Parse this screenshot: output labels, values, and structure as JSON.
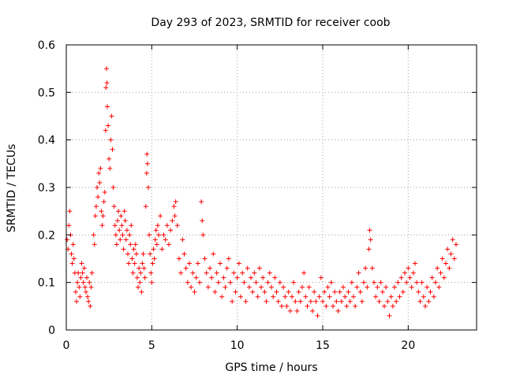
{
  "chart_data": {
    "type": "scatter",
    "title": "Day 293 of 2023, SRMTID for receiver coob",
    "xlabel": "GPS time / hours",
    "ylabel": "SRMTID / TECUs",
    "xlim": [
      0,
      24
    ],
    "ylim": [
      0,
      0.6
    ],
    "xticks": [
      0,
      5,
      10,
      15,
      20
    ],
    "xtick_labels": [
      "0",
      "5",
      "10",
      "15",
      "20"
    ],
    "yticks": [
      0,
      0.1,
      0.2,
      0.3,
      0.4,
      0.5,
      0.6
    ],
    "ytick_labels": [
      "0",
      "0.1",
      "0.2",
      "0.3",
      "0.4",
      "0.5",
      "0.6"
    ],
    "grid": true,
    "marker": "+",
    "color": "#ff0000",
    "series": [
      {
        "name": "SRMTID",
        "points": [
          [
            0.05,
            0.19
          ],
          [
            0.1,
            0.17
          ],
          [
            0.15,
            0.22
          ],
          [
            0.2,
            0.25
          ],
          [
            0.25,
            0.2
          ],
          [
            0.3,
            0.16
          ],
          [
            0.35,
            0.14
          ],
          [
            0.4,
            0.18
          ],
          [
            0.45,
            0.15
          ],
          [
            0.5,
            0.12
          ],
          [
            0.55,
            0.08
          ],
          [
            0.6,
            0.06
          ],
          [
            0.65,
            0.1
          ],
          [
            0.7,
            0.12
          ],
          [
            0.75,
            0.09
          ],
          [
            0.8,
            0.07
          ],
          [
            0.85,
            0.11
          ],
          [
            0.9,
            0.14
          ],
          [
            0.95,
            0.12
          ],
          [
            1.0,
            0.1
          ],
          [
            1.05,
            0.13
          ],
          [
            1.1,
            0.09
          ],
          [
            1.15,
            0.08
          ],
          [
            1.2,
            0.11
          ],
          [
            1.25,
            0.07
          ],
          [
            1.3,
            0.06
          ],
          [
            1.35,
            0.1
          ],
          [
            1.4,
            0.05
          ],
          [
            1.45,
            0.09
          ],
          [
            1.5,
            0.12
          ],
          [
            1.6,
            0.2
          ],
          [
            1.65,
            0.18
          ],
          [
            1.7,
            0.24
          ],
          [
            1.75,
            0.26
          ],
          [
            1.8,
            0.3
          ],
          [
            1.85,
            0.28
          ],
          [
            1.9,
            0.33
          ],
          [
            1.95,
            0.31
          ],
          [
            2.0,
            0.34
          ],
          [
            2.05,
            0.25
          ],
          [
            2.1,
            0.22
          ],
          [
            2.15,
            0.24
          ],
          [
            2.2,
            0.27
          ],
          [
            2.25,
            0.29
          ],
          [
            2.3,
            0.42
          ],
          [
            2.32,
            0.51
          ],
          [
            2.35,
            0.55
          ],
          [
            2.38,
            0.52
          ],
          [
            2.4,
            0.47
          ],
          [
            2.45,
            0.43
          ],
          [
            2.5,
            0.36
          ],
          [
            2.55,
            0.34
          ],
          [
            2.6,
            0.4
          ],
          [
            2.65,
            0.45
          ],
          [
            2.7,
            0.38
          ],
          [
            2.75,
            0.3
          ],
          [
            2.8,
            0.26
          ],
          [
            2.85,
            0.22
          ],
          [
            2.9,
            0.2
          ],
          [
            2.95,
            0.18
          ],
          [
            3.0,
            0.23
          ],
          [
            3.05,
            0.25
          ],
          [
            3.1,
            0.21
          ],
          [
            3.15,
            0.19
          ],
          [
            3.2,
            0.24
          ],
          [
            3.25,
            0.22
          ],
          [
            3.3,
            0.2
          ],
          [
            3.35,
            0.17
          ],
          [
            3.4,
            0.25
          ],
          [
            3.45,
            0.23
          ],
          [
            3.5,
            0.19
          ],
          [
            3.55,
            0.21
          ],
          [
            3.6,
            0.16
          ],
          [
            3.65,
            0.14
          ],
          [
            3.7,
            0.2
          ],
          [
            3.75,
            0.18
          ],
          [
            3.8,
            0.22
          ],
          [
            3.85,
            0.15
          ],
          [
            3.9,
            0.12
          ],
          [
            3.95,
            0.17
          ],
          [
            4.0,
            0.14
          ],
          [
            4.05,
            0.18
          ],
          [
            4.1,
            0.16
          ],
          [
            4.15,
            0.11
          ],
          [
            4.2,
            0.09
          ],
          [
            4.25,
            0.13
          ],
          [
            4.3,
            0.1
          ],
          [
            4.35,
            0.12
          ],
          [
            4.4,
            0.08
          ],
          [
            4.45,
            0.14
          ],
          [
            4.5,
            0.16
          ],
          [
            4.55,
            0.13
          ],
          [
            4.6,
            0.11
          ],
          [
            4.65,
            0.26
          ],
          [
            4.7,
            0.33
          ],
          [
            4.72,
            0.37
          ],
          [
            4.75,
            0.35
          ],
          [
            4.8,
            0.3
          ],
          [
            4.85,
            0.2
          ],
          [
            4.9,
            0.16
          ],
          [
            4.95,
            0.12
          ],
          [
            5.0,
            0.1
          ],
          [
            5.05,
            0.14
          ],
          [
            5.1,
            0.17
          ],
          [
            5.15,
            0.15
          ],
          [
            5.2,
            0.19
          ],
          [
            5.25,
            0.21
          ],
          [
            5.3,
            0.18
          ],
          [
            5.35,
            0.22
          ],
          [
            5.4,
            0.2
          ],
          [
            5.5,
            0.24
          ],
          [
            5.6,
            0.17
          ],
          [
            5.7,
            0.2
          ],
          [
            5.8,
            0.19
          ],
          [
            5.9,
            0.22
          ],
          [
            6.0,
            0.18
          ],
          [
            6.1,
            0.21
          ],
          [
            6.2,
            0.23
          ],
          [
            6.3,
            0.26
          ],
          [
            6.35,
            0.24
          ],
          [
            6.4,
            0.27
          ],
          [
            6.5,
            0.22
          ],
          [
            6.6,
            0.15
          ],
          [
            6.7,
            0.12
          ],
          [
            6.8,
            0.19
          ],
          [
            6.9,
            0.16
          ],
          [
            7.0,
            0.13
          ],
          [
            7.1,
            0.1
          ],
          [
            7.2,
            0.14
          ],
          [
            7.3,
            0.09
          ],
          [
            7.4,
            0.12
          ],
          [
            7.5,
            0.08
          ],
          [
            7.6,
            0.11
          ],
          [
            7.7,
            0.14
          ],
          [
            7.8,
            0.1
          ],
          [
            7.9,
            0.27
          ],
          [
            7.95,
            0.23
          ],
          [
            8.0,
            0.2
          ],
          [
            8.1,
            0.15
          ],
          [
            8.2,
            0.12
          ],
          [
            8.3,
            0.09
          ],
          [
            8.4,
            0.13
          ],
          [
            8.5,
            0.11
          ],
          [
            8.6,
            0.16
          ],
          [
            8.7,
            0.08
          ],
          [
            8.8,
            0.12
          ],
          [
            8.9,
            0.1
          ],
          [
            9.0,
            0.14
          ],
          [
            9.1,
            0.07
          ],
          [
            9.2,
            0.11
          ],
          [
            9.3,
            0.09
          ],
          [
            9.4,
            0.13
          ],
          [
            9.5,
            0.15
          ],
          [
            9.6,
            0.1
          ],
          [
            9.7,
            0.06
          ],
          [
            9.8,
            0.12
          ],
          [
            9.9,
            0.08
          ],
          [
            10.0,
            0.11
          ],
          [
            10.1,
            0.14
          ],
          [
            10.2,
            0.07
          ],
          [
            10.3,
            0.12
          ],
          [
            10.4,
            0.1
          ],
          [
            10.5,
            0.06
          ],
          [
            10.6,
            0.13
          ],
          [
            10.7,
            0.09
          ],
          [
            10.8,
            0.11
          ],
          [
            10.9,
            0.08
          ],
          [
            11.0,
            0.12
          ],
          [
            11.1,
            0.1
          ],
          [
            11.2,
            0.07
          ],
          [
            11.3,
            0.13
          ],
          [
            11.4,
            0.09
          ],
          [
            11.5,
            0.11
          ],
          [
            11.6,
            0.08
          ],
          [
            11.7,
            0.06
          ],
          [
            11.8,
            0.1
          ],
          [
            11.9,
            0.12
          ],
          [
            12.0,
            0.09
          ],
          [
            12.1,
            0.07
          ],
          [
            12.2,
            0.11
          ],
          [
            12.3,
            0.08
          ],
          [
            12.4,
            0.06
          ],
          [
            12.5,
            0.1
          ],
          [
            12.6,
            0.05
          ],
          [
            12.7,
            0.09
          ],
          [
            12.8,
            0.07
          ],
          [
            12.9,
            0.05
          ],
          [
            13.0,
            0.08
          ],
          [
            13.1,
            0.04
          ],
          [
            13.2,
            0.07
          ],
          [
            13.3,
            0.1
          ],
          [
            13.4,
            0.06
          ],
          [
            13.5,
            0.04
          ],
          [
            13.6,
            0.08
          ],
          [
            13.7,
            0.06
          ],
          [
            13.8,
            0.09
          ],
          [
            13.9,
            0.12
          ],
          [
            14.0,
            0.07
          ],
          [
            14.1,
            0.05
          ],
          [
            14.2,
            0.09
          ],
          [
            14.3,
            0.06
          ],
          [
            14.4,
            0.04
          ],
          [
            14.5,
            0.08
          ],
          [
            14.6,
            0.06
          ],
          [
            14.7,
            0.03
          ],
          [
            14.8,
            0.07
          ],
          [
            14.9,
            0.11
          ],
          [
            15.0,
            0.06
          ],
          [
            15.1,
            0.08
          ],
          [
            15.2,
            0.05
          ],
          [
            15.3,
            0.09
          ],
          [
            15.4,
            0.07
          ],
          [
            15.5,
            0.1
          ],
          [
            15.6,
            0.05
          ],
          [
            15.7,
            0.08
          ],
          [
            15.8,
            0.06
          ],
          [
            15.9,
            0.04
          ],
          [
            16.0,
            0.08
          ],
          [
            16.1,
            0.06
          ],
          [
            16.2,
            0.09
          ],
          [
            16.3,
            0.07
          ],
          [
            16.4,
            0.05
          ],
          [
            16.5,
            0.08
          ],
          [
            16.6,
            0.06
          ],
          [
            16.7,
            0.1
          ],
          [
            16.8,
            0.07
          ],
          [
            16.9,
            0.05
          ],
          [
            17.0,
            0.09
          ],
          [
            17.1,
            0.12
          ],
          [
            17.2,
            0.08
          ],
          [
            17.3,
            0.06
          ],
          [
            17.4,
            0.1
          ],
          [
            17.5,
            0.13
          ],
          [
            17.6,
            0.09
          ],
          [
            17.7,
            0.17
          ],
          [
            17.75,
            0.21
          ],
          [
            17.8,
            0.19
          ],
          [
            17.9,
            0.13
          ],
          [
            18.0,
            0.1
          ],
          [
            18.1,
            0.07
          ],
          [
            18.2,
            0.09
          ],
          [
            18.3,
            0.06
          ],
          [
            18.4,
            0.1
          ],
          [
            18.5,
            0.08
          ],
          [
            18.6,
            0.05
          ],
          [
            18.7,
            0.09
          ],
          [
            18.8,
            0.06
          ],
          [
            18.9,
            0.03
          ],
          [
            19.0,
            0.07
          ],
          [
            19.1,
            0.05
          ],
          [
            19.2,
            0.09
          ],
          [
            19.3,
            0.06
          ],
          [
            19.4,
            0.1
          ],
          [
            19.5,
            0.07
          ],
          [
            19.6,
            0.11
          ],
          [
            19.7,
            0.08
          ],
          [
            19.8,
            0.12
          ],
          [
            19.9,
            0.1
          ],
          [
            20.0,
            0.13
          ],
          [
            20.1,
            0.11
          ],
          [
            20.2,
            0.09
          ],
          [
            20.3,
            0.12
          ],
          [
            20.4,
            0.14
          ],
          [
            20.5,
            0.1
          ],
          [
            20.6,
            0.08
          ],
          [
            20.7,
            0.06
          ],
          [
            20.8,
            0.1
          ],
          [
            20.9,
            0.07
          ],
          [
            21.0,
            0.05
          ],
          [
            21.1,
            0.09
          ],
          [
            21.2,
            0.06
          ],
          [
            21.3,
            0.08
          ],
          [
            21.4,
            0.11
          ],
          [
            21.5,
            0.07
          ],
          [
            21.6,
            0.1
          ],
          [
            21.7,
            0.13
          ],
          [
            21.8,
            0.09
          ],
          [
            21.9,
            0.12
          ],
          [
            22.0,
            0.15
          ],
          [
            22.1,
            0.11
          ],
          [
            22.2,
            0.14
          ],
          [
            22.3,
            0.17
          ],
          [
            22.4,
            0.13
          ],
          [
            22.5,
            0.16
          ],
          [
            22.6,
            0.19
          ],
          [
            22.7,
            0.15
          ],
          [
            22.8,
            0.18
          ]
        ]
      }
    ]
  }
}
